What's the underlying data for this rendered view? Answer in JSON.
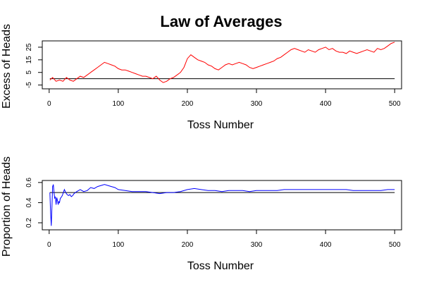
{
  "title": "Law of Averages",
  "chart_data": [
    {
      "type": "line",
      "xlabel": "Toss Number",
      "ylabel": "Excess of Heads",
      "xlim": [
        -10,
        510
      ],
      "ylim": [
        -8,
        30
      ],
      "xticks": [
        0,
        100,
        200,
        300,
        400,
        500
      ],
      "yticks": [
        -5,
        5,
        15,
        25
      ],
      "reference_line": 0,
      "reference_color": "#000000",
      "line_color": "#ff0000",
      "grid": false,
      "x": [
        1,
        5,
        10,
        15,
        20,
        25,
        30,
        35,
        40,
        45,
        50,
        55,
        60,
        65,
        70,
        75,
        80,
        85,
        90,
        95,
        100,
        105,
        110,
        115,
        120,
        125,
        130,
        135,
        140,
        145,
        150,
        155,
        160,
        165,
        170,
        175,
        180,
        185,
        190,
        195,
        200,
        205,
        210,
        215,
        220,
        225,
        230,
        235,
        240,
        245,
        250,
        255,
        260,
        265,
        270,
        275,
        280,
        285,
        290,
        295,
        300,
        305,
        310,
        315,
        320,
        325,
        330,
        335,
        340,
        345,
        350,
        355,
        360,
        365,
        370,
        375,
        380,
        385,
        390,
        395,
        400,
        405,
        410,
        415,
        420,
        425,
        430,
        435,
        440,
        445,
        450,
        455,
        460,
        465,
        470,
        475,
        480,
        485,
        490,
        495,
        500
      ],
      "values": [
        -1,
        1,
        -2,
        -1,
        -2,
        1,
        -1,
        -2,
        0,
        2,
        1,
        3,
        5,
        7,
        9,
        11,
        13,
        12,
        11,
        10,
        8,
        7,
        7,
        6,
        5,
        4,
        3,
        2,
        2,
        1,
        0,
        2,
        -1,
        -3,
        -2,
        0,
        1,
        3,
        5,
        9,
        16,
        19,
        17,
        15,
        14,
        13,
        11,
        10,
        8,
        7,
        9,
        11,
        12,
        11,
        12,
        13,
        12,
        11,
        9,
        8,
        9,
        10,
        11,
        12,
        13,
        14,
        16,
        17,
        19,
        21,
        23,
        24,
        23,
        22,
        21,
        23,
        22,
        21,
        23,
        24,
        25,
        23,
        24,
        22,
        21,
        21,
        20,
        22,
        21,
        20,
        21,
        22,
        23,
        22,
        21,
        24,
        23,
        24,
        26,
        28,
        29
      ]
    },
    {
      "type": "line",
      "xlabel": "Toss Number",
      "ylabel": "Proportion of Heads",
      "xlim": [
        -10,
        510
      ],
      "ylim": [
        0.13,
        0.62
      ],
      "xticks": [
        0,
        100,
        200,
        300,
        400,
        500
      ],
      "yticks": [
        0.2,
        0.4,
        0.6
      ],
      "reference_line": 0.5,
      "reference_color": "#000000",
      "line_color": "#0000ff",
      "grid": false,
      "x": [
        1,
        2,
        3,
        4,
        5,
        6,
        7,
        8,
        9,
        10,
        11,
        12,
        13,
        14,
        15,
        16,
        17,
        18,
        19,
        20,
        22,
        24,
        26,
        28,
        30,
        32,
        34,
        36,
        38,
        40,
        45,
        50,
        55,
        60,
        65,
        70,
        75,
        80,
        85,
        90,
        95,
        100,
        110,
        120,
        130,
        140,
        150,
        160,
        170,
        180,
        190,
        200,
        210,
        220,
        230,
        240,
        250,
        260,
        270,
        280,
        290,
        300,
        310,
        320,
        330,
        340,
        350,
        360,
        370,
        380,
        390,
        400,
        410,
        420,
        430,
        440,
        450,
        460,
        470,
        480,
        490,
        500
      ],
      "values": [
        0.5,
        0.3,
        0.17,
        0.35,
        0.56,
        0.58,
        0.5,
        0.44,
        0.46,
        0.38,
        0.45,
        0.42,
        0.38,
        0.41,
        0.4,
        0.44,
        0.45,
        0.46,
        0.47,
        0.49,
        0.53,
        0.5,
        0.48,
        0.47,
        0.48,
        0.46,
        0.47,
        0.49,
        0.5,
        0.51,
        0.53,
        0.51,
        0.52,
        0.55,
        0.54,
        0.56,
        0.57,
        0.58,
        0.57,
        0.56,
        0.55,
        0.53,
        0.52,
        0.51,
        0.51,
        0.51,
        0.5,
        0.49,
        0.5,
        0.5,
        0.51,
        0.53,
        0.54,
        0.53,
        0.52,
        0.52,
        0.51,
        0.52,
        0.52,
        0.52,
        0.51,
        0.52,
        0.52,
        0.52,
        0.52,
        0.53,
        0.53,
        0.53,
        0.53,
        0.53,
        0.53,
        0.53,
        0.53,
        0.53,
        0.53,
        0.52,
        0.52,
        0.52,
        0.52,
        0.52,
        0.53,
        0.53
      ]
    }
  ]
}
